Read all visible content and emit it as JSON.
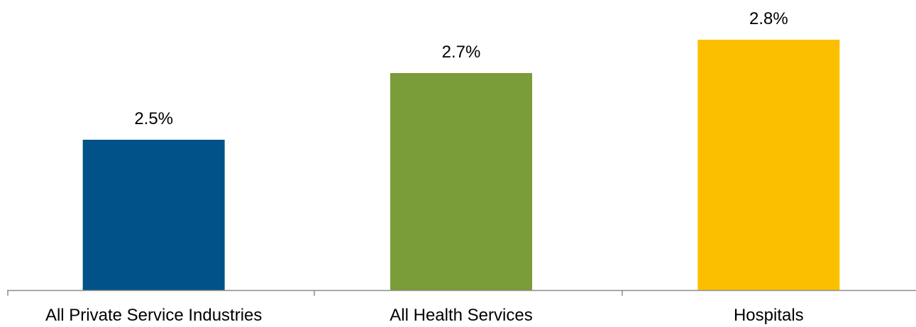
{
  "chart_data": {
    "type": "bar",
    "categories": [
      "All Private Service Industries",
      "All Health Services",
      "Hospitals"
    ],
    "values": [
      2.5,
      2.7,
      2.8
    ],
    "data_labels": [
      "2.5%",
      "2.7%",
      "2.8%"
    ],
    "colors": [
      "#005288",
      "#7a9c39",
      "#fcbf00"
    ],
    "title": "",
    "xlabel": "",
    "ylabel": "",
    "grid": false,
    "legend": "none"
  }
}
